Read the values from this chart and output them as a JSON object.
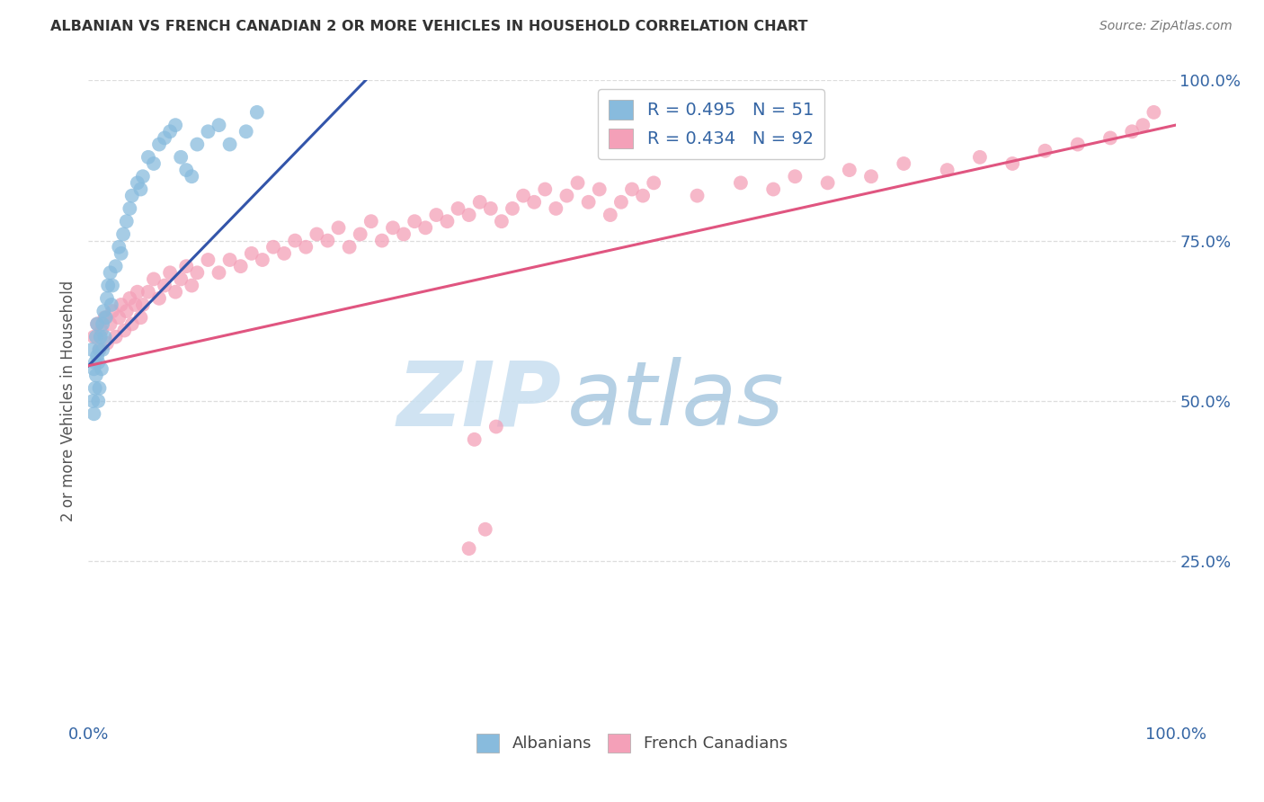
{
  "title": "ALBANIAN VS FRENCH CANADIAN 2 OR MORE VEHICLES IN HOUSEHOLD CORRELATION CHART",
  "source": "Source: ZipAtlas.com",
  "ylabel": "2 or more Vehicles in Household",
  "xlim": [
    0,
    1.0
  ],
  "ylim": [
    0,
    1.0
  ],
  "blue_color": "#88bbdd",
  "pink_color": "#f4a0b8",
  "blue_line_color": "#3355aa",
  "pink_line_color": "#e05580",
  "legend_text_color": "#3465a4",
  "title_color": "#333333",
  "source_color": "#777777",
  "grid_color": "#dddddd",
  "tick_color": "#3465a4",
  "ylabel_color": "#555555",
  "watermark_zip_color": "#c8dff0",
  "watermark_atlas_color": "#a8c8e0",
  "alb_line_x0": 0.0,
  "alb_line_y0": 0.555,
  "alb_line_x1": 0.255,
  "alb_line_y1": 1.0,
  "frc_line_x0": 0.0,
  "frc_line_y0": 0.555,
  "frc_line_x1": 1.0,
  "frc_line_y1": 0.93,
  "albanians_x": [
    0.003,
    0.004,
    0.005,
    0.005,
    0.006,
    0.006,
    0.007,
    0.007,
    0.008,
    0.008,
    0.009,
    0.009,
    0.01,
    0.01,
    0.011,
    0.012,
    0.013,
    0.013,
    0.014,
    0.015,
    0.016,
    0.017,
    0.018,
    0.02,
    0.021,
    0.022,
    0.025,
    0.028,
    0.03,
    0.032,
    0.035,
    0.038,
    0.04,
    0.045,
    0.048,
    0.05,
    0.055,
    0.06,
    0.065,
    0.07,
    0.075,
    0.08,
    0.085,
    0.09,
    0.095,
    0.1,
    0.11,
    0.12,
    0.13,
    0.145,
    0.155
  ],
  "albanians_y": [
    0.58,
    0.5,
    0.55,
    0.48,
    0.56,
    0.52,
    0.6,
    0.54,
    0.62,
    0.57,
    0.56,
    0.5,
    0.58,
    0.52,
    0.6,
    0.55,
    0.62,
    0.58,
    0.64,
    0.6,
    0.63,
    0.66,
    0.68,
    0.7,
    0.65,
    0.68,
    0.71,
    0.74,
    0.73,
    0.76,
    0.78,
    0.8,
    0.82,
    0.84,
    0.83,
    0.85,
    0.88,
    0.87,
    0.9,
    0.91,
    0.92,
    0.93,
    0.88,
    0.86,
    0.85,
    0.9,
    0.92,
    0.93,
    0.9,
    0.92,
    0.95
  ],
  "french_x": [
    0.005,
    0.008,
    0.01,
    0.012,
    0.015,
    0.017,
    0.02,
    0.022,
    0.025,
    0.028,
    0.03,
    0.033,
    0.035,
    0.038,
    0.04,
    0.043,
    0.045,
    0.048,
    0.05,
    0.055,
    0.06,
    0.065,
    0.07,
    0.075,
    0.08,
    0.085,
    0.09,
    0.095,
    0.1,
    0.11,
    0.12,
    0.13,
    0.14,
    0.15,
    0.16,
    0.17,
    0.18,
    0.19,
    0.2,
    0.21,
    0.22,
    0.23,
    0.24,
    0.25,
    0.26,
    0.27,
    0.28,
    0.29,
    0.3,
    0.31,
    0.32,
    0.33,
    0.34,
    0.35,
    0.36,
    0.37,
    0.38,
    0.39,
    0.4,
    0.41,
    0.42,
    0.43,
    0.44,
    0.45,
    0.46,
    0.47,
    0.48,
    0.49,
    0.5,
    0.51,
    0.52,
    0.56,
    0.6,
    0.63,
    0.65,
    0.68,
    0.7,
    0.72,
    0.75,
    0.79,
    0.82,
    0.85,
    0.88,
    0.91,
    0.94,
    0.96,
    0.97,
    0.98,
    0.35,
    0.365,
    0.355,
    0.375
  ],
  "french_y": [
    0.6,
    0.62,
    0.58,
    0.61,
    0.63,
    0.59,
    0.62,
    0.64,
    0.6,
    0.63,
    0.65,
    0.61,
    0.64,
    0.66,
    0.62,
    0.65,
    0.67,
    0.63,
    0.65,
    0.67,
    0.69,
    0.66,
    0.68,
    0.7,
    0.67,
    0.69,
    0.71,
    0.68,
    0.7,
    0.72,
    0.7,
    0.72,
    0.71,
    0.73,
    0.72,
    0.74,
    0.73,
    0.75,
    0.74,
    0.76,
    0.75,
    0.77,
    0.74,
    0.76,
    0.78,
    0.75,
    0.77,
    0.76,
    0.78,
    0.77,
    0.79,
    0.78,
    0.8,
    0.79,
    0.81,
    0.8,
    0.78,
    0.8,
    0.82,
    0.81,
    0.83,
    0.8,
    0.82,
    0.84,
    0.81,
    0.83,
    0.79,
    0.81,
    0.83,
    0.82,
    0.84,
    0.82,
    0.84,
    0.83,
    0.85,
    0.84,
    0.86,
    0.85,
    0.87,
    0.86,
    0.88,
    0.87,
    0.89,
    0.9,
    0.91,
    0.92,
    0.93,
    0.95,
    0.27,
    0.3,
    0.44,
    0.46
  ]
}
